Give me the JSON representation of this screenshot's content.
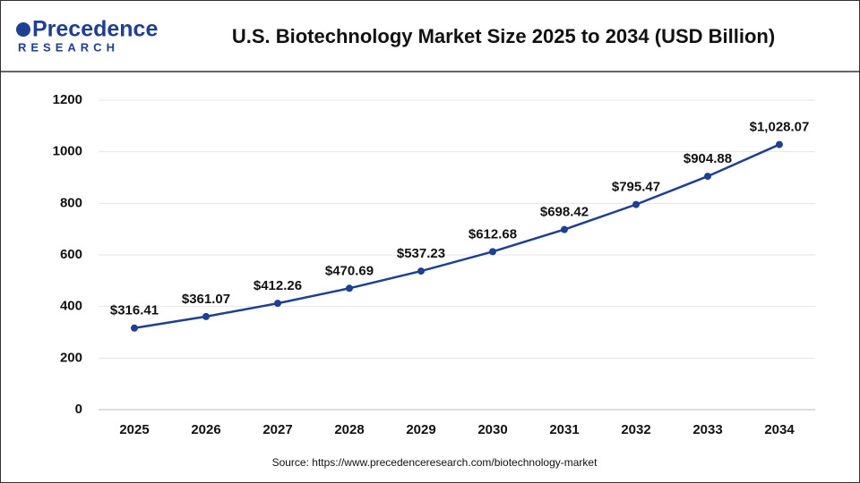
{
  "logo": {
    "name": "Precedence",
    "tagline": "RESEARCH"
  },
  "chart_data": {
    "type": "line",
    "title": "U.S. Biotechnology Market Size 2025 to 2034 (USD Billion)",
    "source": "Source: https://www.precedenceresearch.com/biotechnology-market",
    "categories": [
      "2025",
      "2026",
      "2027",
      "2028",
      "2029",
      "2030",
      "2031",
      "2032",
      "2033",
      "2034"
    ],
    "series": [
      {
        "name": "U.S. Biotechnology Market Size",
        "color": "#1f3f93",
        "values": [
          316.41,
          361.07,
          412.26,
          470.69,
          537.23,
          612.68,
          698.42,
          795.47,
          904.88,
          1028.07
        ],
        "value_labels": [
          "$316.41",
          "$361.07",
          "$412.26",
          "$470.69",
          "$537.23",
          "$612.68",
          "$698.42",
          "$795.47",
          "$904.88",
          "$1,028.07"
        ]
      }
    ],
    "ylim": [
      0,
      1200
    ],
    "yticks": [
      0,
      200,
      400,
      600,
      800,
      1000,
      1200
    ],
    "grid": true
  }
}
